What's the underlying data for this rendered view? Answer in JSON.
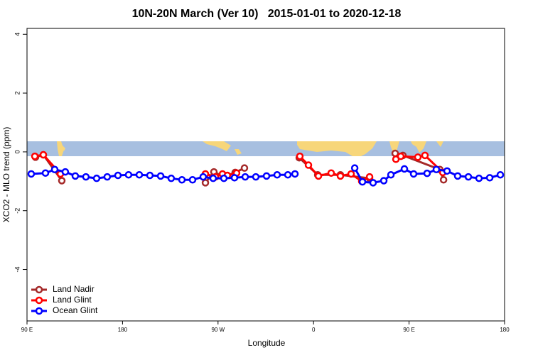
{
  "chart_data": {
    "type": "line",
    "title": "10N-20N March (Ver 10)   2015-01-01 to 2020-12-18",
    "xlabel": "Longitude",
    "ylabel": "XCO2 - MLO trend (ppm)",
    "xlim": [
      90,
      540
    ],
    "ylim": [
      -5.75,
      4.2
    ],
    "xticks": [
      {
        "value": 90,
        "label": "90 E"
      },
      180,
      {
        "value": 270,
        "label": "90 W"
      },
      {
        "value": 360,
        "label": "0"
      },
      {
        "value": 450,
        "label": "90 E"
      },
      {
        "value": 540,
        "label": "180"
      }
    ],
    "yticks": [
      -4,
      -2,
      0,
      2,
      4
    ],
    "legend": "bottom-left",
    "series": [
      {
        "name": "Land Nadir",
        "color": "#a52a2a",
        "x": [
          98,
          105.4,
          122.8,
          null,
          258.1,
          266.1,
          275.5,
          286.2,
          294.9,
          null,
          346.5,
          363.9,
          385.3,
          412.8,
          null,
          436.9,
          444.2,
          479,
          482.5
        ],
        "values": [
          -0.18,
          -0.1,
          -0.98,
          null,
          -1.05,
          -0.68,
          -0.85,
          -0.7,
          -0.55,
          null,
          -0.2,
          -0.78,
          -0.78,
          -0.9,
          null,
          -0.05,
          -0.12,
          -0.6,
          -0.95
        ]
      },
      {
        "name": "Land Glint",
        "color": "#ff0000",
        "x": [
          97.4,
          105.4,
          121.5,
          null,
          258.1,
          267.5,
          274.2,
          278.8,
          287.5,
          null,
          347.1,
          355.2,
          364.6,
          376.6,
          385.3,
          395.4,
          405.4,
          412.8,
          null,
          437.6,
          442.2,
          458.3,
          465,
          481.8
        ],
        "values": [
          -0.15,
          -0.1,
          -0.75,
          null,
          -0.75,
          -0.85,
          -0.75,
          -0.8,
          -0.72,
          null,
          -0.15,
          -0.45,
          -0.82,
          -0.72,
          -0.82,
          -0.75,
          -1.0,
          -0.85,
          null,
          -0.25,
          -0.15,
          -0.18,
          -0.12,
          -0.7
        ]
      },
      {
        "name": "Ocean Glint",
        "color": "#0000ff",
        "x": [
          94,
          107.4,
          116.1,
          126.1,
          135.5,
          145.5,
          155.6,
          165.6,
          175.7,
          185.7,
          195.8,
          205.8,
          215.9,
          225.9,
          236,
          246,
          256,
          265.4,
          275.5,
          285.5,
          295.6,
          305.6,
          315.7,
          325.7,
          335.8,
          342.5,
          null,
          398.8,
          406.1,
          416.1,
          426.2,
          432.9,
          445.6,
          454.3,
          467,
          475.7,
          485.8,
          495.8,
          505.9,
          515.9,
          526,
          536
        ],
        "values": [
          -0.75,
          -0.72,
          -0.6,
          -0.68,
          -0.82,
          -0.85,
          -0.9,
          -0.85,
          -0.8,
          -0.78,
          -0.78,
          -0.8,
          -0.82,
          -0.9,
          -0.95,
          -0.95,
          -0.85,
          -0.9,
          -0.9,
          -0.88,
          -0.85,
          -0.85,
          -0.82,
          -0.78,
          -0.78,
          -0.75,
          null,
          -0.55,
          -1.02,
          -1.05,
          -0.98,
          -0.78,
          -0.58,
          -0.75,
          -0.73,
          -0.6,
          -0.65,
          -0.82,
          -0.85,
          -0.9,
          -0.88,
          -0.78
        ]
      }
    ]
  }
}
